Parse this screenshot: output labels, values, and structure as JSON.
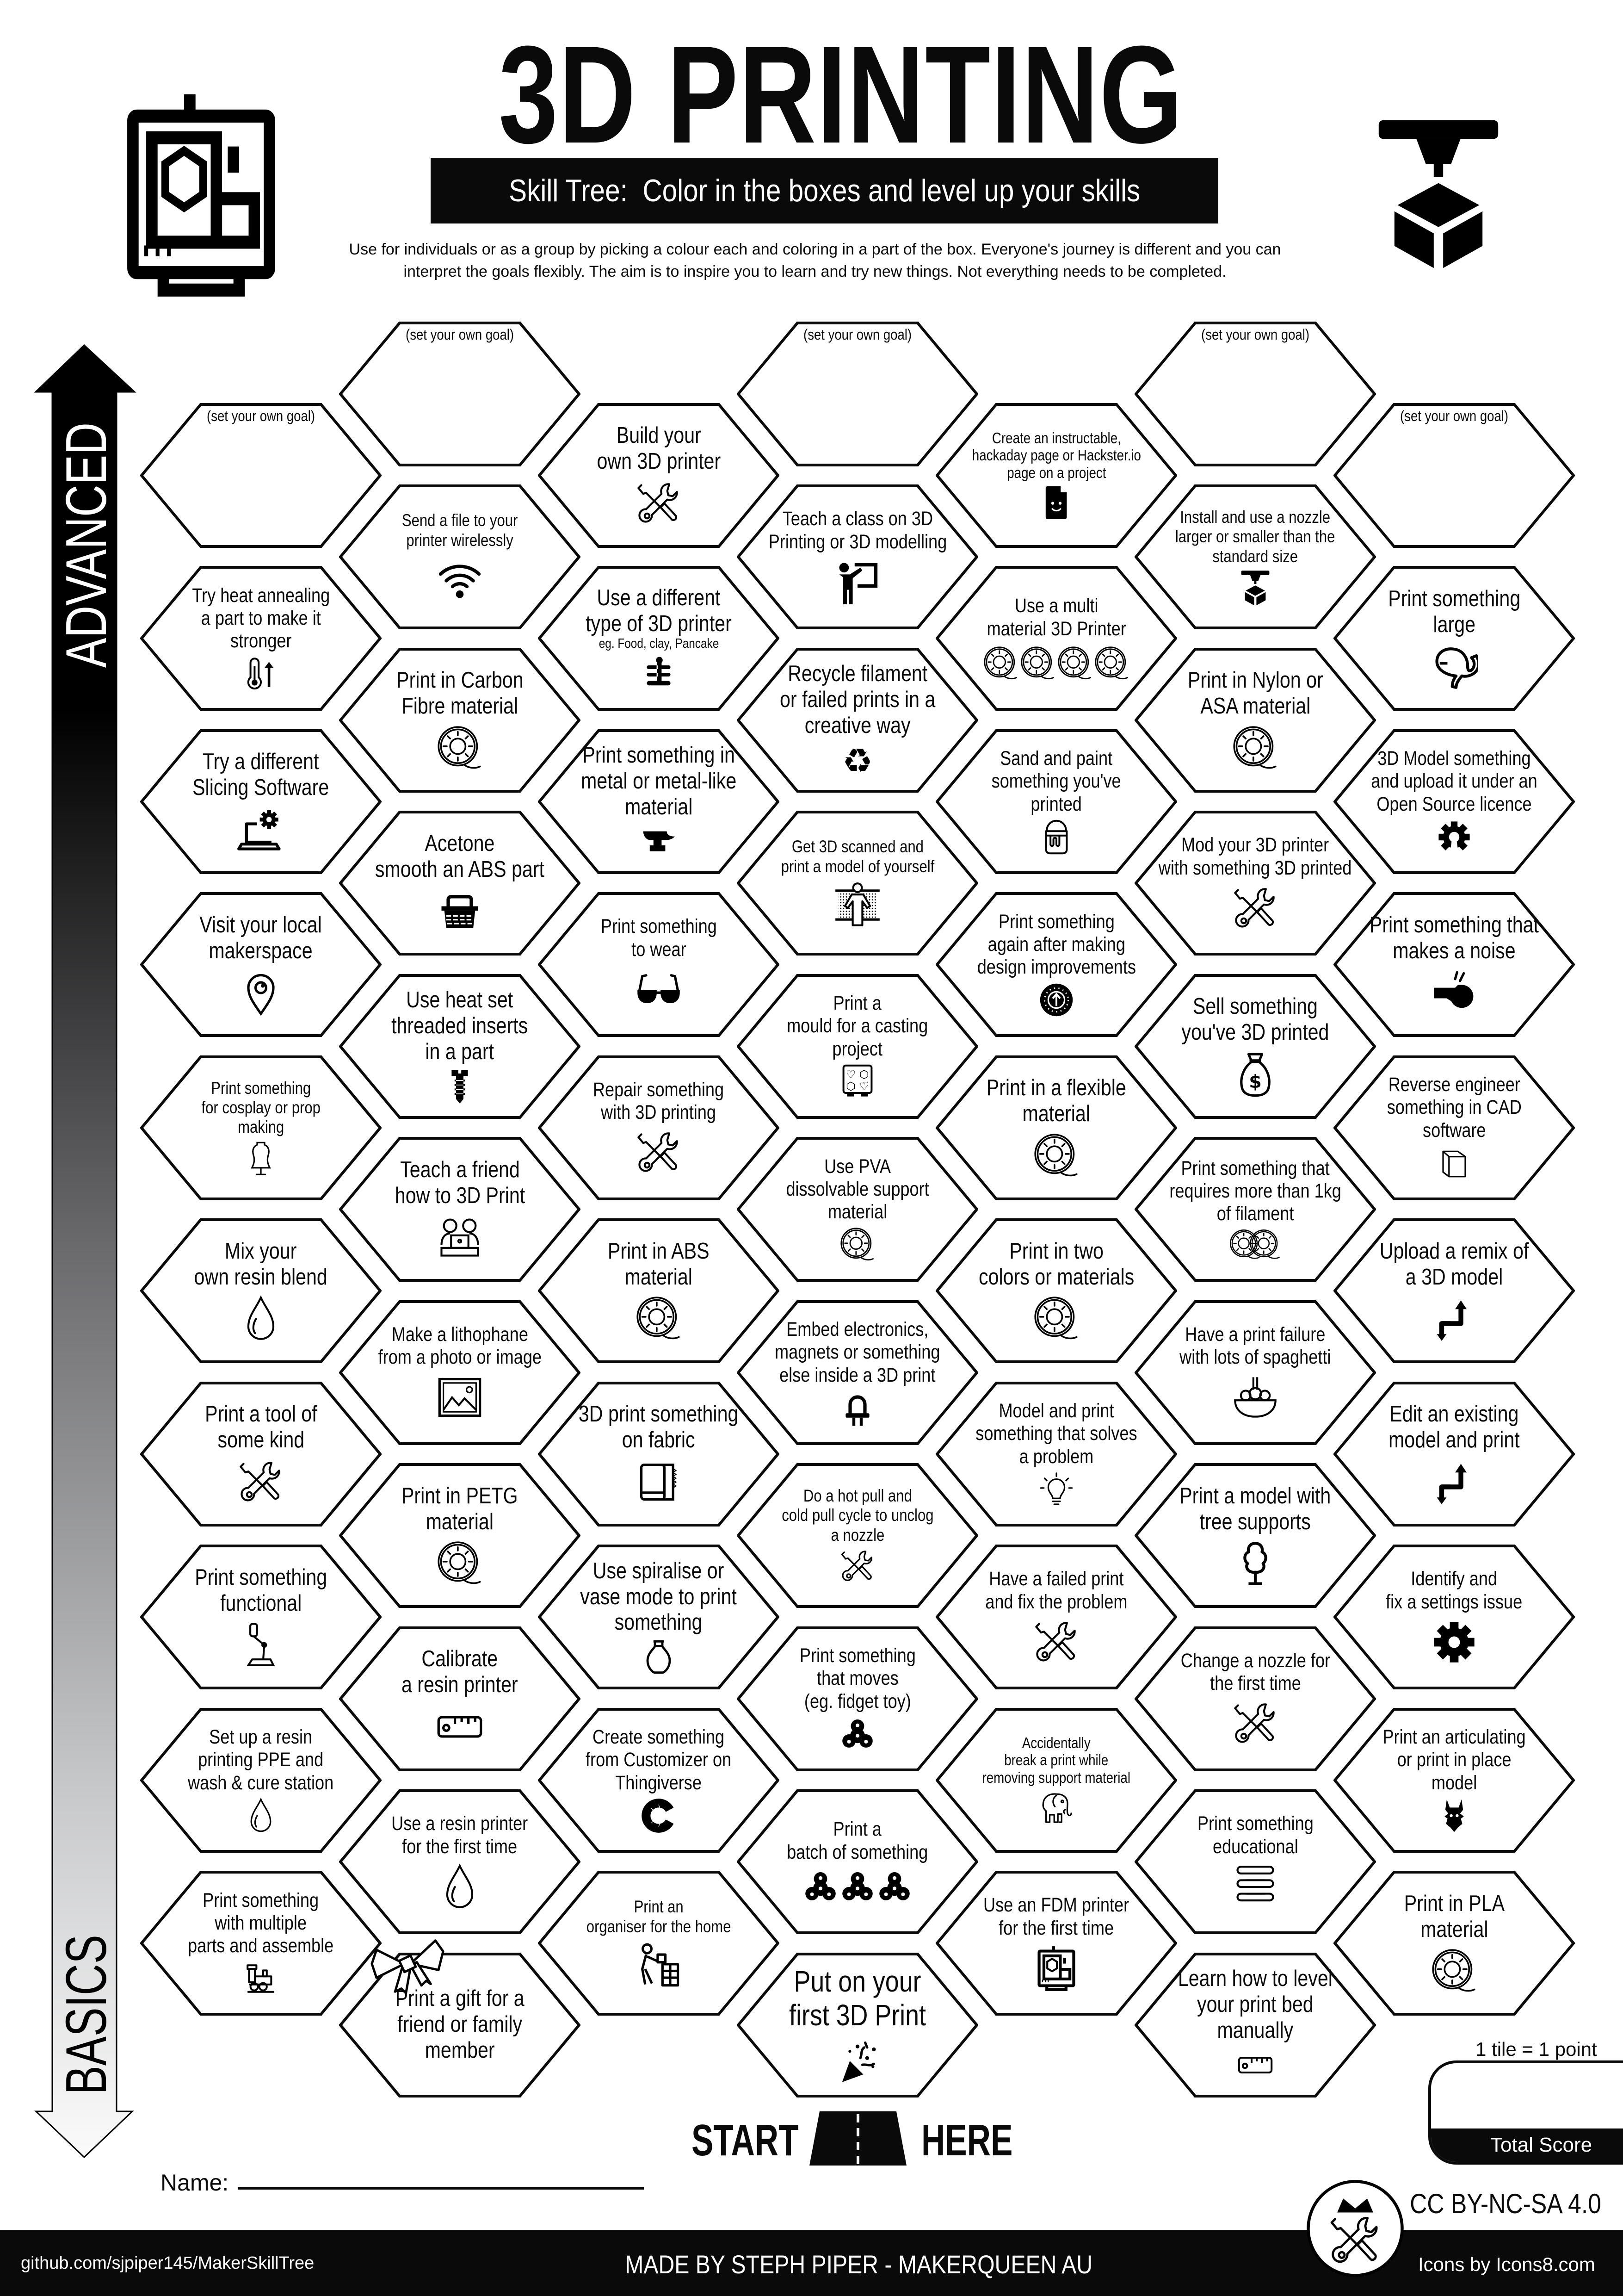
{
  "colors": {
    "ink": "#0a0a0a",
    "paper": "#ffffff",
    "arrow_top": "#000000",
    "arrow_bottom": "#fbfbfb"
  },
  "header": {
    "title": "3D PRINTING",
    "subtitle": "Skill Tree:  Color in the boxes and level up your skills",
    "intro": "Use for individuals or as a group by picking a colour each and coloring in a part of the box.  Everyone's journey is different and you can\ninterpret the goals flexibly.  The aim is to inspire you to learn and try new things. Not everything needs to be completed.",
    "left_icon": "3d-printer",
    "right_icon": "nozzle-cube"
  },
  "side": {
    "advanced": "ADVANCED",
    "basics": "BASICS"
  },
  "grid": {
    "columns": [
      [
        {
          "type": "goal",
          "label": "(set your own goal)"
        },
        {
          "label": "Try heat annealing\na part to make it\nstronger",
          "icon": "thermometer-up"
        },
        {
          "label": "Try a different\nSlicing Software",
          "icon": "laptop-settings"
        },
        {
          "label": "Visit your local\nmakerspace",
          "icon": "location-pin"
        },
        {
          "label": "Print something\nfor cosplay or prop\nmaking",
          "icon": "mannequin"
        },
        {
          "label": "Mix your\nown resin blend",
          "icon": "resin-drop"
        },
        {
          "label": "Print a tool of\nsome kind",
          "icon": "tools"
        },
        {
          "label": "Print something\nfunctional",
          "icon": "robot-arm"
        },
        {
          "label": "Set up a resin\nprinting PPE and\nwash & cure station",
          "icon": "resin-drop"
        },
        {
          "label": "Print something\nwith multiple\nparts and assemble",
          "icon": "toy-train"
        }
      ],
      [
        {
          "type": "goal",
          "label": "(set your own goal)"
        },
        {
          "label": "Send a file to your\nprinter wirelessly",
          "icon": "wifi"
        },
        {
          "label": "Print in Carbon\nFibre material",
          "icon": "filament-spool"
        },
        {
          "label": "Acetone\nsmooth an ABS part",
          "icon": "acetone-bath"
        },
        {
          "label": "Use heat set\nthreaded inserts\nin a part",
          "icon": "screw"
        },
        {
          "label": "Teach a friend\nhow to 3D Print",
          "icon": "friends-laptop"
        },
        {
          "label": "Make a lithophane\nfrom a photo or image",
          "icon": "picture"
        },
        {
          "label": "Print in PETG\nmaterial",
          "icon": "filament-spool"
        },
        {
          "label": "Calibrate\na resin printer",
          "icon": "ruler"
        },
        {
          "label": "Use a resin printer\nfor the first time",
          "icon": "resin-drop"
        },
        {
          "label": "Print a gift for a\nfriend or family\nmember",
          "icon": "gift-bow",
          "corner": true
        }
      ],
      [
        {
          "label": "Build your\nown 3D printer",
          "icon": "tools"
        },
        {
          "label": "Use a different\ntype of 3D printer",
          "sub": "eg. Food, clay, Pancake",
          "icon": "pancake-printer"
        },
        {
          "label": "Print something in\nmetal or metal-like\nmaterial",
          "icon": "anvil"
        },
        {
          "label": "Print something\nto wear",
          "icon": "sunglasses"
        },
        {
          "label": "Repair something\nwith 3D printing",
          "icon": "tools"
        },
        {
          "label": "Print in ABS\nmaterial",
          "icon": "filament-spool"
        },
        {
          "label": "3D print something\non fabric",
          "icon": "fabric-roll"
        },
        {
          "label": "Use spiralise or\nvase mode to print\nsomething",
          "icon": "vase"
        },
        {
          "label": "Create something\nfrom Customizer on\nThingiverse",
          "icon": "customizer-logo"
        },
        {
          "label": "Print an\norganiser for the home",
          "icon": "organiser"
        }
      ],
      [
        {
          "type": "goal",
          "label": "(set your own goal)"
        },
        {
          "label": "Teach a class on 3D\nPrinting or 3D modelling",
          "icon": "teacher"
        },
        {
          "label": "Recycle filament\nor failed prints in a\ncreative way",
          "icon": "recycle"
        },
        {
          "label": "Get 3D scanned and\nprint a model of yourself",
          "icon": "body-scan"
        },
        {
          "label": "Print a\nmould for a casting\nproject",
          "icon": "mould"
        },
        {
          "label": "Use PVA\ndissolvable support\nmaterial",
          "icon": "filament-spool"
        },
        {
          "label": "Embed electronics,\nmagnets or something\nelse inside a 3D print",
          "icon": "led"
        },
        {
          "label": "Do a hot pull and\ncold pull cycle to unclog\na nozzle",
          "icon": "tools"
        },
        {
          "label": "Print something\nthat moves\n(eg. fidget toy)",
          "icon": "fidget-spinner"
        },
        {
          "label": "Print a\nbatch of something",
          "icon": "fidget-spinners-3"
        },
        {
          "label": "Put on your\nfirst 3D Print",
          "icon": "party-popper"
        }
      ],
      [
        {
          "label": "Create an instructable,\nhackaday page or Hackster.io\npage on a project",
          "icon": "document"
        },
        {
          "label": "Use a multi\nmaterial 3D Printer",
          "icon": "spools-4"
        },
        {
          "label": "Sand and paint\nsomething you've\nprinted",
          "icon": "paint-bucket"
        },
        {
          "label": "Print something\nagain after making\ndesign improvements",
          "icon": "upgrade"
        },
        {
          "label": "Print in a flexible\nmaterial",
          "icon": "filament-spool"
        },
        {
          "label": "Print in two\ncolors or materials",
          "icon": "filament-spool"
        },
        {
          "label": "Model and print\nsomething that solves\na problem",
          "icon": "lightbulb"
        },
        {
          "label": "Have a failed print\nand fix the problem",
          "icon": "tools"
        },
        {
          "label": "Accidentally\nbreak a print while\nremoving support material",
          "icon": "elephant"
        },
        {
          "label": "Use an FDM printer\nfor the first time",
          "icon": "3d-printer"
        }
      ],
      [
        {
          "type": "goal",
          "label": "(set your own goal)"
        },
        {
          "label": "Install and use a nozzle\nlarger or smaller than the\nstandard size",
          "icon": "nozzle-cube"
        },
        {
          "label": "Print in Nylon or\nASA material",
          "icon": "filament-spool"
        },
        {
          "label": "Mod your 3D printer\nwith something 3D printed",
          "icon": "tools"
        },
        {
          "label": "Sell something\nyou've 3D printed",
          "icon": "money-bag"
        },
        {
          "label": "Print something that\nrequires more than 1kg\nof filament",
          "icon": "spools-2"
        },
        {
          "label": "Have a print failure\nwith lots of spaghetti",
          "icon": "spaghetti"
        },
        {
          "label": "Print a model with\ntree supports",
          "icon": "tree"
        },
        {
          "label": "Change a nozzle for\nthe first time",
          "icon": "tools"
        },
        {
          "label": "Print something\neducational",
          "icon": "spine"
        },
        {
          "label": "Learn how to level\nyour print bed\nmanually",
          "icon": "ruler"
        }
      ],
      [
        {
          "type": "goal",
          "label": "(set your own goal)"
        },
        {
          "label": "Print something\nlarge",
          "icon": "whale"
        },
        {
          "label": "3D Model something\nand upload it under an\nOpen Source licence",
          "icon": "open-source"
        },
        {
          "label": "Print something that\nmakes a noise",
          "icon": "whistle"
        },
        {
          "label": "Reverse engineer\nsomething in CAD\nsoftware",
          "icon": "cube"
        },
        {
          "label": "Upload a remix of\na 3D model",
          "icon": "remix"
        },
        {
          "label": "Edit an existing\nmodel and print",
          "icon": "remix"
        },
        {
          "label": "Identify and\nfix a settings issue",
          "icon": "gear"
        },
        {
          "label": "Print an articulating\nor print in place\nmodel",
          "icon": "dragon"
        },
        {
          "label": "Print in PLA\nmaterial",
          "icon": "filament-spool"
        }
      ]
    ]
  },
  "start": {
    "start": "START",
    "here": "HERE",
    "icon": "road"
  },
  "name": {
    "label": "Name:",
    "value": ""
  },
  "score": {
    "note": "1 tile = 1 point",
    "label": "Total Score",
    "value": ""
  },
  "license": "CC BY-NC-SA 4.0",
  "footer": {
    "github": "github.com/sjpiper145/MakerSkillTree",
    "made_by": "MADE BY STEPH PIPER  -  MAKERQUEEN AU",
    "credit": "Icons by Icons8.com",
    "logo_icon": "makerqueen-logo"
  }
}
